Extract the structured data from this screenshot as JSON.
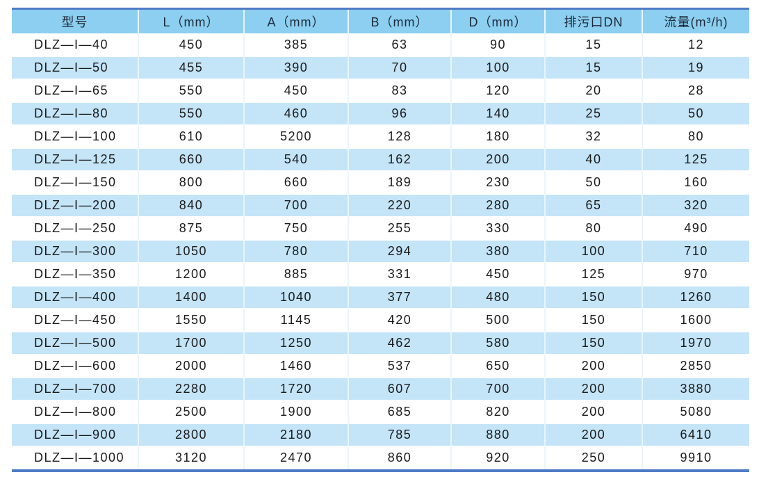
{
  "table": {
    "headers": [
      "型号",
      "L（mm）",
      "A（mm）",
      "B（mm）",
      "D（mm）",
      "排污口DN",
      "流量(m³/h)"
    ],
    "rows": [
      [
        "DLZ—I—40",
        "450",
        "385",
        "63",
        "90",
        "15",
        "12"
      ],
      [
        "DLZ—I—50",
        "455",
        "390",
        "70",
        "100",
        "15",
        "19"
      ],
      [
        "DLZ—I—65",
        "550",
        "450",
        "83",
        "120",
        "20",
        "28"
      ],
      [
        "DLZ—I—80",
        "550",
        "460",
        "96",
        "140",
        "25",
        "50"
      ],
      [
        "DLZ—I—100",
        "610",
        "5200",
        "128",
        "180",
        "32",
        "80"
      ],
      [
        "DLZ—I—125",
        "660",
        "540",
        "162",
        "200",
        "40",
        "125"
      ],
      [
        "DLZ—I—150",
        "800",
        "660",
        "189",
        "230",
        "50",
        "160"
      ],
      [
        "DLZ—I—200",
        "840",
        "700",
        "220",
        "280",
        "65",
        "320"
      ],
      [
        "DLZ—I—250",
        "875",
        "750",
        "255",
        "330",
        "80",
        "490"
      ],
      [
        "DLZ—I—300",
        "1050",
        "780",
        "294",
        "380",
        "100",
        "710"
      ],
      [
        "DLZ—I—350",
        "1200",
        "885",
        "331",
        "450",
        "125",
        "970"
      ],
      [
        "DLZ—I—400",
        "1400",
        "1040",
        "377",
        "480",
        "150",
        "1260"
      ],
      [
        "DLZ—I—450",
        "1550",
        "1145",
        "420",
        "500",
        "150",
        "1600"
      ],
      [
        "DLZ—I—500",
        "1700",
        "1250",
        "462",
        "580",
        "150",
        "1970"
      ],
      [
        "DLZ—I—600",
        "2000",
        "1460",
        "537",
        "650",
        "200",
        "2850"
      ],
      [
        "DLZ—I—700",
        "2280",
        "1720",
        "607",
        "700",
        "200",
        "3880"
      ],
      [
        "DLZ—I—800",
        "2500",
        "1900",
        "685",
        "820",
        "200",
        "5080"
      ],
      [
        "DLZ—I—900",
        "2800",
        "2180",
        "785",
        "880",
        "200",
        "6410"
      ],
      [
        "DLZ—I—1000",
        "3120",
        "2470",
        "860",
        "920",
        "250",
        "9910"
      ]
    ]
  },
  "colors": {
    "header_bg": "#8ccff0",
    "alt_row_bg": "#c4e4f7",
    "rule": "#4f7cc4"
  }
}
